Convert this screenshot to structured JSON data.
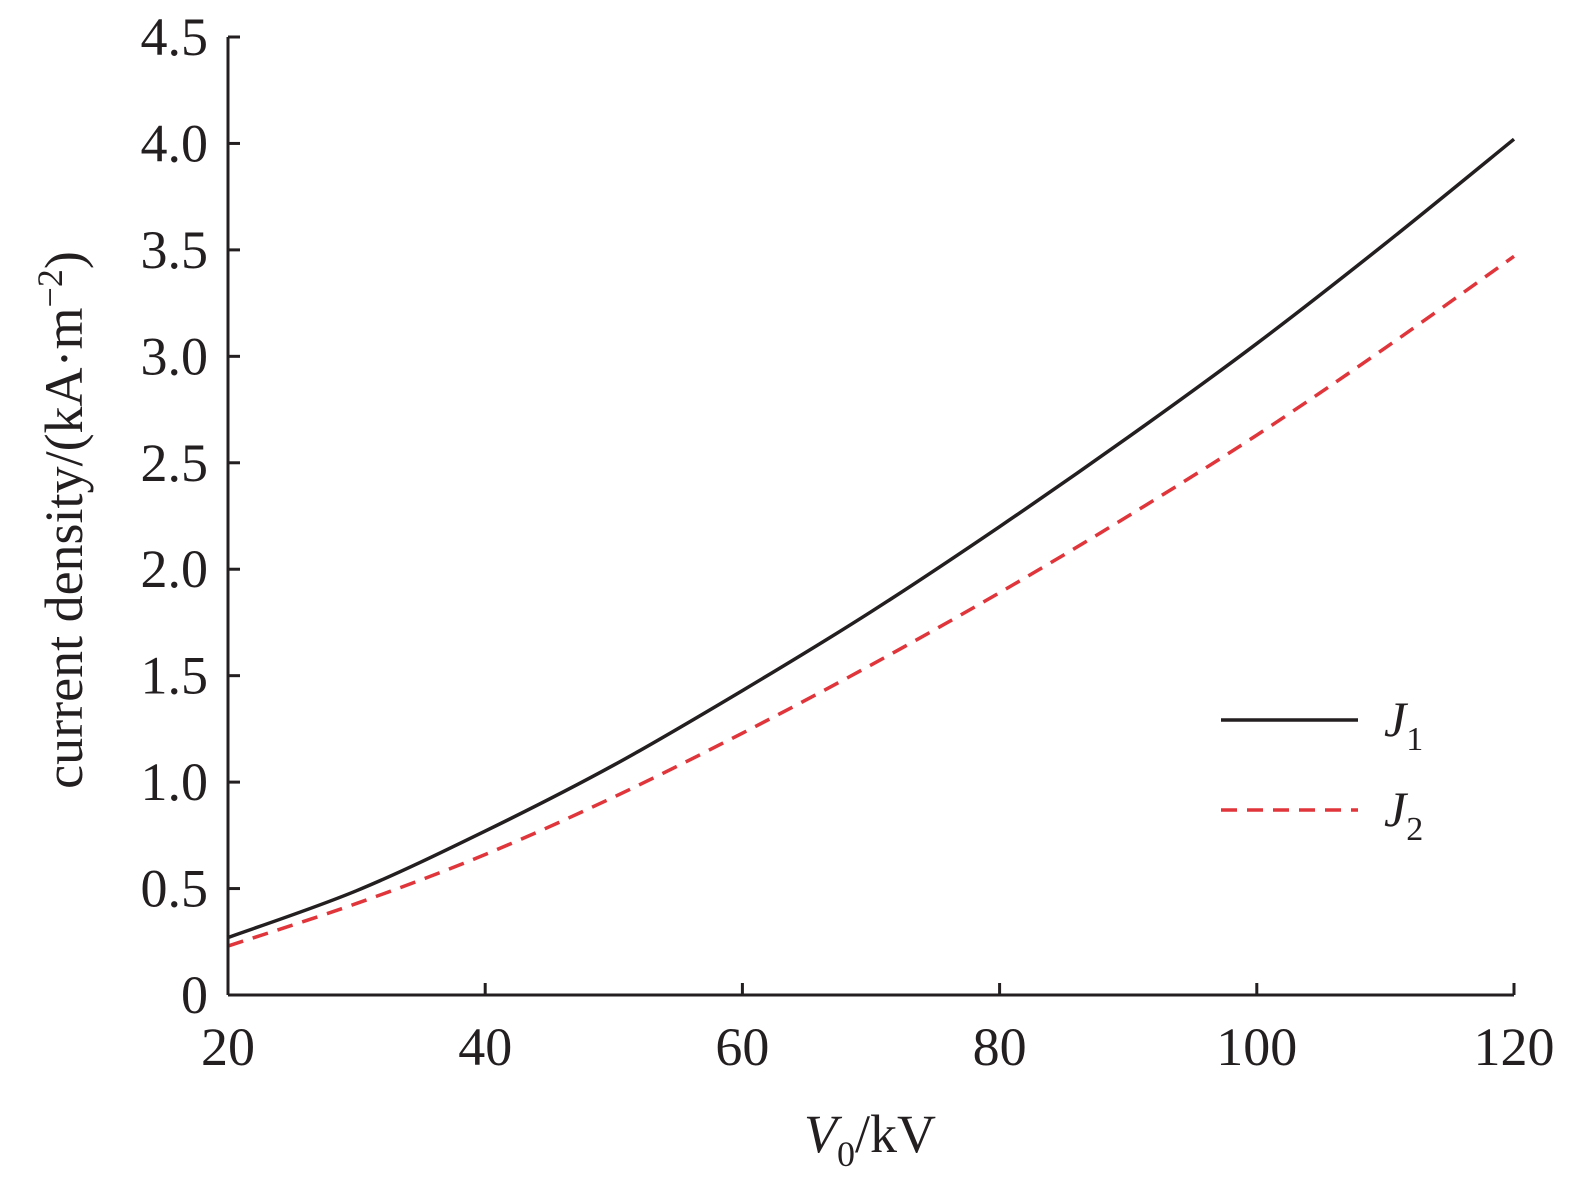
{
  "chart_data": {
    "type": "line",
    "title": "",
    "xlabel": {
      "main": "V",
      "sub": "0",
      "unit": "/kV"
    },
    "ylabel": {
      "main": "current density/(kA·m",
      "sup": "−2",
      "close": ")"
    },
    "xlim": [
      20,
      120
    ],
    "ylim": [
      0,
      4.5
    ],
    "x_ticks": [
      20,
      40,
      60,
      80,
      100,
      120
    ],
    "x_tick_labels": [
      "20",
      "40",
      "60",
      "80",
      "100",
      "120"
    ],
    "y_ticks": [
      0,
      0.5,
      1.0,
      1.5,
      2.0,
      2.5,
      3.0,
      3.5,
      4.0,
      4.5
    ],
    "y_tick_labels": [
      "0",
      "0.5",
      "1.0",
      "1.5",
      "2.0",
      "2.5",
      "3.0",
      "3.5",
      "4.0",
      "4.5"
    ],
    "grid": false,
    "legend_position": "right",
    "x": [
      20,
      30,
      40,
      50,
      60,
      70,
      80,
      90,
      100,
      110,
      120
    ],
    "series": [
      {
        "name": "J",
        "name_sub": "1",
        "color": "#231f20",
        "style": "solid",
        "values": [
          0.27,
          0.49,
          0.77,
          1.08,
          1.43,
          1.8,
          2.2,
          2.62,
          3.06,
          3.53,
          4.02
        ]
      },
      {
        "name": "J",
        "name_sub": "2",
        "color": "#e0353a",
        "style": "dashed",
        "values": [
          0.23,
          0.43,
          0.66,
          0.93,
          1.23,
          1.55,
          1.89,
          2.25,
          2.63,
          3.04,
          3.47
        ]
      }
    ]
  }
}
